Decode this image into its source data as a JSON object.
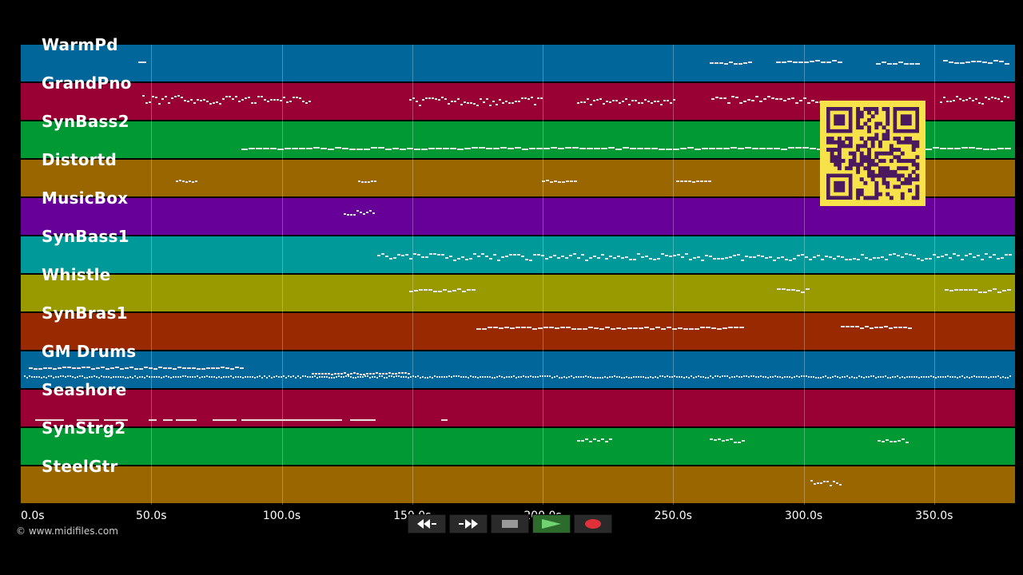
{
  "tracks": [
    {
      "name": "WarmPd",
      "color": "#016699"
    },
    {
      "name": "GrandPno",
      "color": "#990033"
    },
    {
      "name": "SynBass2",
      "color": "#009933"
    },
    {
      "name": "Distortd",
      "color": "#996600"
    },
    {
      "name": "MusicBox",
      "color": "#660099"
    },
    {
      "name": "SynBass1",
      "color": "#009999"
    },
    {
      "name": "Whistle",
      "color": "#999900"
    },
    {
      "name": "SynBras1",
      "color": "#992900"
    },
    {
      "name": "GM Drums",
      "color": "#016699"
    },
    {
      "name": "Seashore",
      "color": "#990033"
    },
    {
      "name": "SynStrg2",
      "color": "#009933"
    },
    {
      "name": "SteelGtr",
      "color": "#996600"
    }
  ],
  "timeline": {
    "tick_labels": [
      "0.0s",
      "50.0s",
      "100.0s",
      "150.0s",
      "200.0s",
      "250.0s",
      "300.0s",
      "350.0s"
    ],
    "tick_seconds": [
      0,
      50,
      100,
      150,
      200,
      250,
      300,
      350
    ],
    "duration_seconds": 381
  },
  "transport": {
    "rewind": "rewind-icon",
    "fast_forward": "fast-forward-icon",
    "stop": "stop-icon",
    "play": "play-icon",
    "record": "record-icon",
    "play_color": "#3fae3f",
    "record_color": "#e0303a"
  },
  "copyright": "© www.midifiles.com"
}
